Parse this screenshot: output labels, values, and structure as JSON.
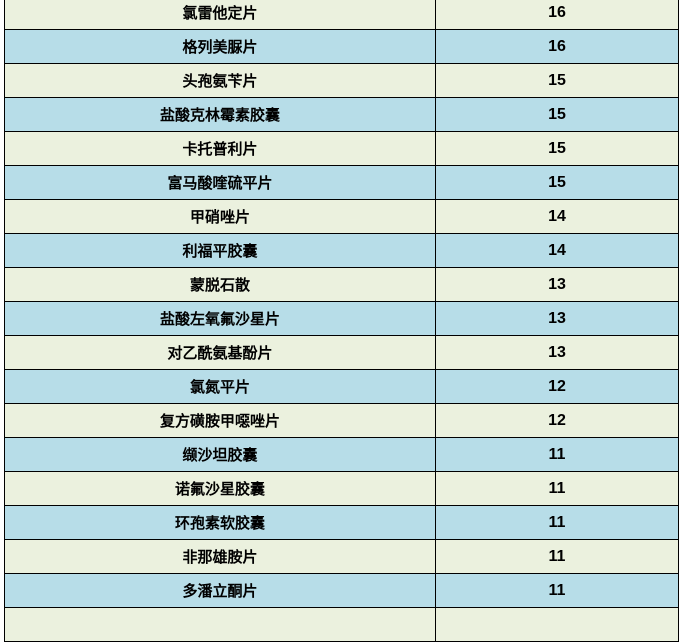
{
  "colors": {
    "row_light": "#EBF1DE",
    "row_blue": "#B7DDE8",
    "border": "#000000"
  },
  "rows": [
    {
      "name": "氯雷他定片",
      "count": "16"
    },
    {
      "name": "格列美脲片",
      "count": "16"
    },
    {
      "name": "头孢氨苄片",
      "count": "15"
    },
    {
      "name": "盐酸克林霉素胶囊",
      "count": "15"
    },
    {
      "name": "卡托普利片",
      "count": "15"
    },
    {
      "name": "富马酸喹硫平片",
      "count": "15"
    },
    {
      "name": "甲硝唑片",
      "count": "14"
    },
    {
      "name": "利福平胶囊",
      "count": "14"
    },
    {
      "name": "蒙脱石散",
      "count": "13"
    },
    {
      "name": "盐酸左氧氟沙星片",
      "count": "13"
    },
    {
      "name": "对乙酰氨基酚片",
      "count": "13"
    },
    {
      "name": "氯氮平片",
      "count": "12"
    },
    {
      "name": "复方磺胺甲噁唑片",
      "count": "12"
    },
    {
      "name": "缬沙坦胶囊",
      "count": "11"
    },
    {
      "name": "诺氟沙星胶囊",
      "count": "11"
    },
    {
      "name": "环孢素软胶囊",
      "count": "11"
    },
    {
      "name": "非那雄胺片",
      "count": "11"
    },
    {
      "name": "多潘立酮片",
      "count": "11"
    }
  ]
}
